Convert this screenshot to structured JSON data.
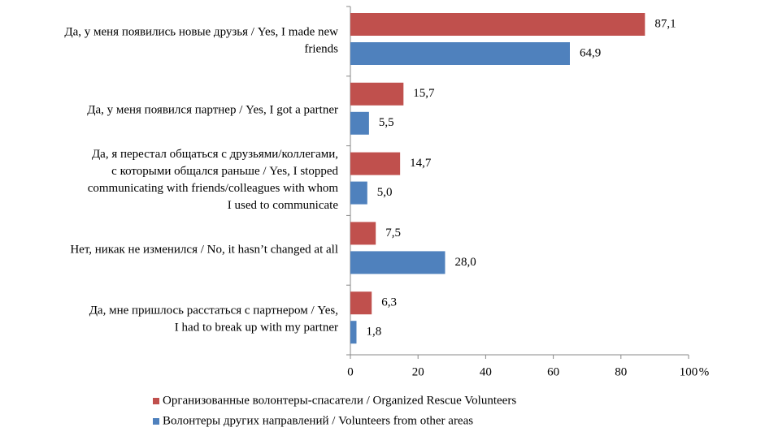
{
  "chart_data": {
    "type": "barh",
    "categories": [
      [
        "Да, у меня появились новые друзья / Yes, I made new",
        "friends"
      ],
      [
        "Да, у меня появился партнер / Yes, I got a partner"
      ],
      [
        "Да, я перестал общаться с друзьями/коллегами,",
        "с которыми общался раньше / Yes, I stopped",
        "communicating with friends/colleagues with whom",
        "I used to communicate"
      ],
      [
        "Нет, никак не изменился / No, it hasn’t changed at all"
      ],
      [
        "Да, мне пришлось расстаться с партнером / Yes,",
        "I had to break up with my partner"
      ]
    ],
    "series": [
      {
        "name": "Организованные волонтеры-спасатели / Organized Rescue Volunteers",
        "color": "#c0504d",
        "values": [
          87.1,
          15.7,
          14.7,
          7.5,
          6.3
        ],
        "value_labels": [
          "87,1",
          "15,7",
          "14,7",
          "7,5",
          "6,3"
        ]
      },
      {
        "name": "Волонтеры других направлений / Volunteers from other areas",
        "color": "#4f81bd",
        "values": [
          64.9,
          5.5,
          5.0,
          28.0,
          1.8
        ],
        "value_labels": [
          "64,9",
          "5,5",
          "5,0",
          "28,0",
          "1,8"
        ]
      }
    ],
    "xlabel": "%",
    "xlim": [
      0,
      100
    ],
    "xticks": [
      0,
      20,
      40,
      60,
      80,
      100
    ]
  }
}
